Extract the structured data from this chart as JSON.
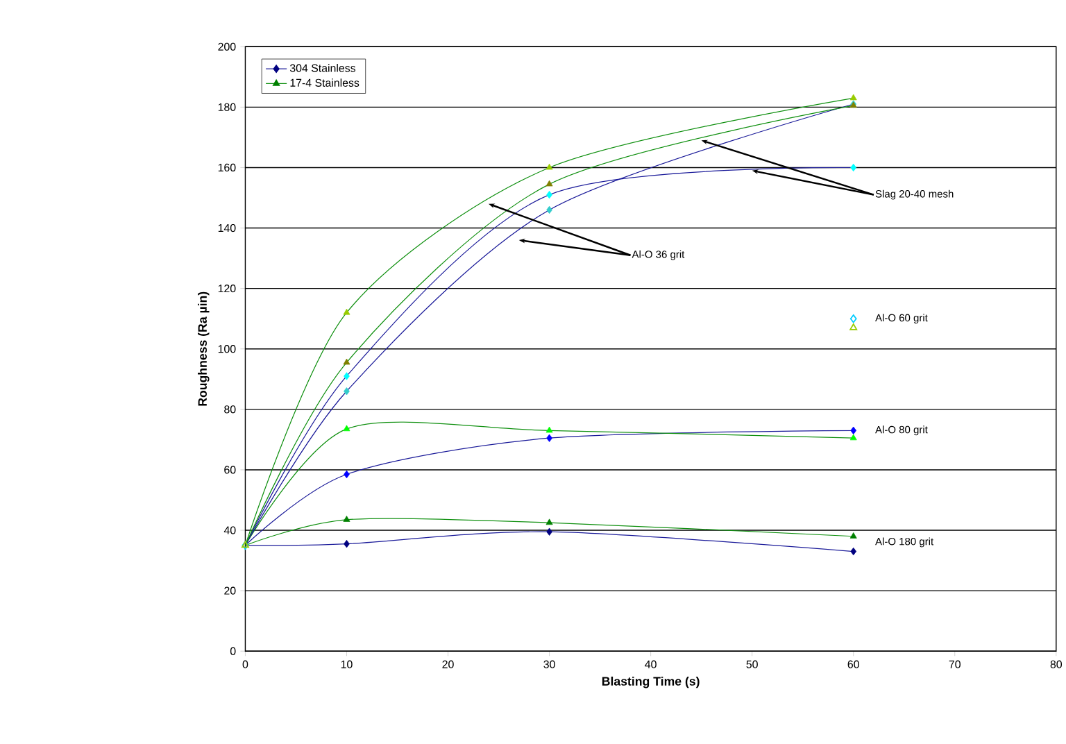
{
  "chart_data": {
    "type": "line",
    "xlabel": "Blasting Time (s)",
    "ylabel": "Roughness (Ra µin)",
    "x": [
      0,
      10,
      30,
      60
    ],
    "xlim": [
      0,
      80
    ],
    "xticks": [
      0,
      10,
      20,
      30,
      40,
      50,
      60,
      70,
      80
    ],
    "ylim": [
      0,
      200
    ],
    "yticks": [
      0,
      20,
      40,
      60,
      80,
      100,
      120,
      140,
      160,
      180,
      200
    ],
    "grid": "y",
    "legend": "top left",
    "series": [
      {
        "name": "304 Stainless",
        "color": "#1a1a99",
        "colors": [
          null,
          "#000080",
          "#000080",
          "#000080"
        ],
        "marker": "diamond",
        "values": [
          35,
          35.5,
          39.5,
          33
        ]
      },
      {
        "name": "17-4 Stainless",
        "color": "#109010",
        "colors": [
          null,
          "#008000",
          "#008000",
          "#008000"
        ],
        "marker": "triangle",
        "values": [
          35,
          43.5,
          42.5,
          38
        ]
      },
      {
        "color": "#1a1a99",
        "colors": [
          null,
          "#0000ff",
          "#0000ff",
          "#0000ff"
        ],
        "marker": "diamond",
        "values": [
          35,
          58.5,
          70.5,
          73
        ]
      },
      {
        "color": "#109010",
        "colors": [
          null,
          "#00ff00",
          "#00ff00",
          "#00ff00"
        ],
        "marker": "triangle",
        "values": [
          35,
          73.5,
          73,
          70.5
        ]
      },
      {
        "color": "#1a1a99",
        "colors": [
          null,
          "#33cccc",
          "#33cccc",
          "#33cccc"
        ],
        "marker": "diamond",
        "values": [
          35,
          86,
          146,
          181
        ]
      },
      {
        "color": "#1a1a99",
        "colors": [
          null,
          "#00ffff",
          "#00ffff",
          "#00ffff"
        ],
        "marker": "diamond",
        "values": [
          35,
          91,
          151,
          160
        ]
      },
      {
        "color": "#109010",
        "colors": [
          null,
          "#808000",
          "#808000",
          "#808000"
        ],
        "marker": "triangle",
        "values": [
          35,
          95.5,
          154.5,
          180.5
        ]
      },
      {
        "color": "#109010",
        "colors": [
          null,
          "#99cc00",
          "#99cc00",
          "#99cc00"
        ],
        "marker": "triangle",
        "values": [
          35,
          112,
          160,
          183
        ]
      },
      {
        "type": "scatter",
        "color": "#00ccff",
        "marker": "diamond",
        "values": [
          35,
          null,
          null,
          110
        ]
      },
      {
        "type": "scatter",
        "color": "#99cc00",
        "marker": "triangle",
        "values": [
          35,
          null,
          null,
          107
        ]
      }
    ],
    "annotations": [
      {
        "text": "Slag 20-40 mesh",
        "x": 50,
        "y": 159
      },
      {
        "text": "Al-O 36 grit",
        "x": 24,
        "y": 148
      },
      "Al-O 60 grit",
      "Al-O 80 grit",
      "Al-O 180 grit"
    ]
  }
}
